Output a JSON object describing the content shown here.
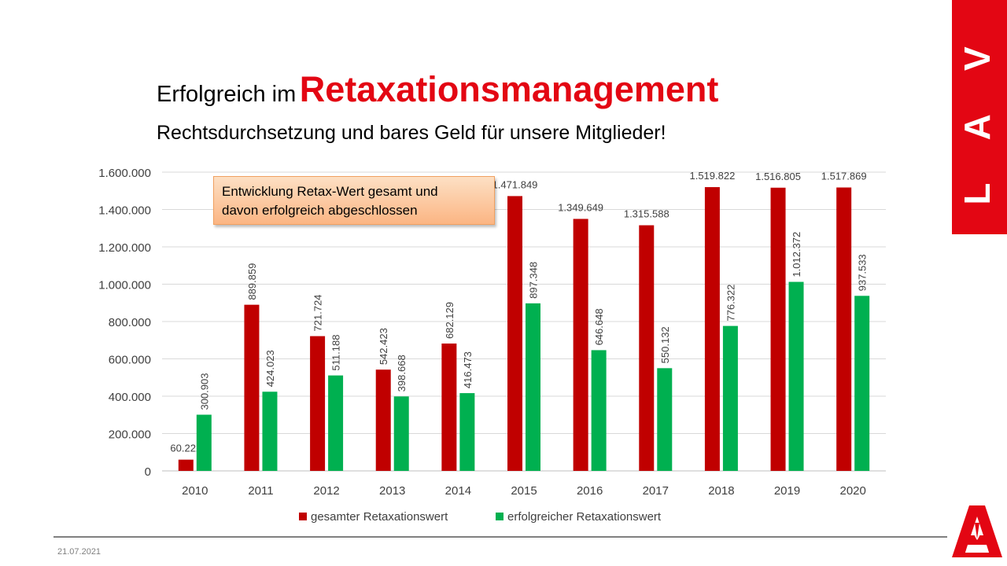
{
  "slide": {
    "title_prefix": "Erfolgreich im",
    "title_accent": "Retaxationsmanagement",
    "subtitle": "Rechtsdurchsetzung und bares Geld für unsere Mitglieder!",
    "logo_text": "L A V",
    "annotation_line1": "Entwicklung Retax-Wert gesamt und",
    "annotation_line2": "davon erfolgreich abgeschlossen",
    "footer_date": "21.07.2021"
  },
  "colors": {
    "accent_red": "#e30613",
    "bar_red": "#c00000",
    "bar_green": "#00b050",
    "grid": "#d9d9d9",
    "text_gray": "#404040"
  },
  "chart_data": {
    "type": "bar",
    "categories": [
      "2010",
      "2011",
      "2012",
      "2013",
      "2014",
      "2015",
      "2016",
      "2017",
      "2018",
      "2019",
      "2020"
    ],
    "series": [
      {
        "name": "gesamter Retaxationswert",
        "values": [
          60222,
          889859,
          721724,
          542423,
          682129,
          1471849,
          1349649,
          1315588,
          1519822,
          1516805,
          1517869
        ],
        "labels": [
          "60.222",
          "889.859",
          "721.724",
          "542.423",
          "682.129",
          "1.471.849",
          "1.349.649",
          "1.315.588",
          "1.519.822",
          "1.516.805",
          "1.517.869"
        ],
        "label_rotated": [
          false,
          true,
          true,
          true,
          true,
          false,
          false,
          false,
          false,
          false,
          false
        ],
        "color": "#c00000"
      },
      {
        "name": "erfolgreicher Retaxationswert",
        "values": [
          300903,
          424023,
          511188,
          398668,
          416473,
          897348,
          646648,
          550132,
          776322,
          1012372,
          937533
        ],
        "labels": [
          "300.903",
          "424.023",
          "511.188",
          "398.668",
          "416.473",
          "897.348",
          "646.648",
          "550.132",
          "776.322",
          "1.012.372",
          "937.533"
        ],
        "label_rotated": [
          true,
          true,
          true,
          true,
          true,
          true,
          true,
          true,
          true,
          true,
          true
        ],
        "color": "#00b050"
      }
    ],
    "yticks": [
      0,
      200000,
      400000,
      600000,
      800000,
      1000000,
      1200000,
      1400000,
      1600000
    ],
    "ytick_labels": [
      "0",
      "200.000",
      "400.000",
      "600.000",
      "800.000",
      "1.000.000",
      "1.200.000",
      "1.400.000",
      "1.600.000"
    ],
    "ylim": [
      0,
      1600000
    ],
    "grid": true,
    "legend_position": "bottom",
    "xlabel": "",
    "ylabel": ""
  }
}
